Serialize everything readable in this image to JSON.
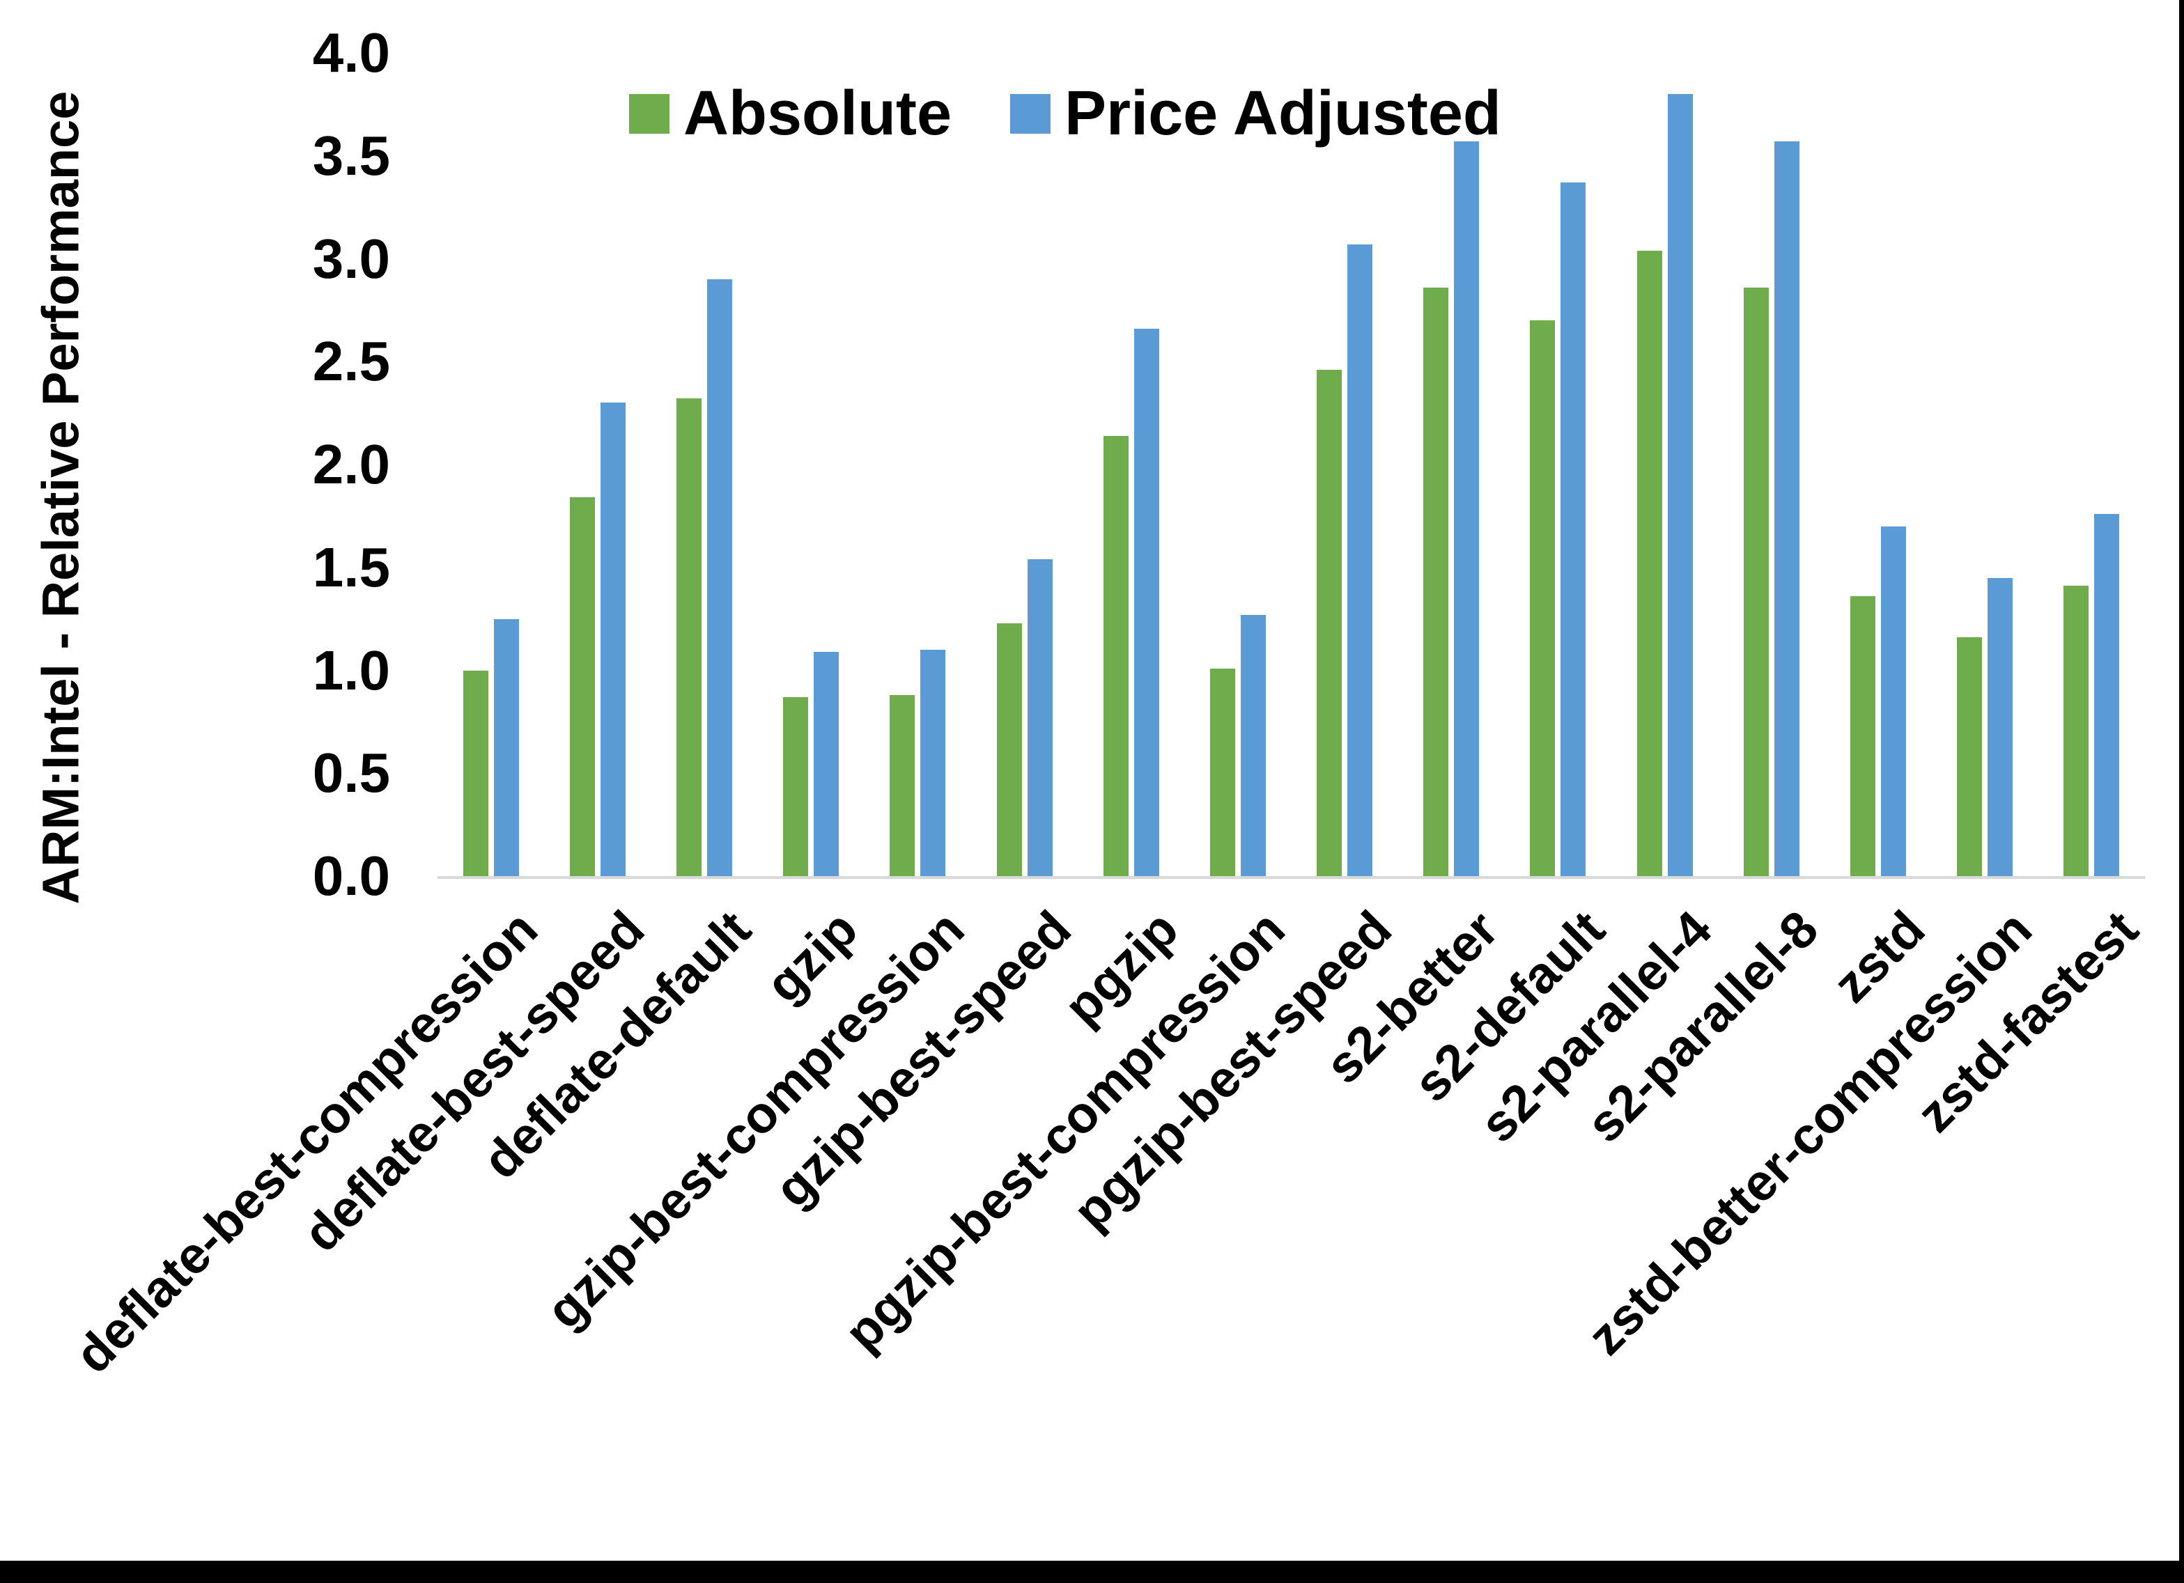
{
  "chart_data": {
    "type": "bar",
    "title": "",
    "xlabel": "",
    "ylabel": "ARM:Intel - Relative Performance",
    "ylim": [
      0.0,
      4.0
    ],
    "ytick_step": 0.5,
    "ytick_labels": [
      "0.0",
      "0.5",
      "1.0",
      "1.5",
      "2.0",
      "2.5",
      "3.0",
      "3.5",
      "4.0"
    ],
    "grid": "off",
    "legend_position": "top-center",
    "categories": [
      "deflate-best-compression",
      "deflate-best-speed",
      "deflate-default",
      "gzip",
      "gzip-best-compression",
      "gzip-best-speed",
      "pgzip",
      "pgzip-best-compression",
      "pgzip-best-speed",
      "s2-better",
      "s2-default",
      "s2-parallel-4",
      "s2-parallel-8",
      "zstd",
      "zstd-better-compression",
      "zstd-fastest"
    ],
    "series": [
      {
        "name": "Absolute",
        "color": "#6FAC4B",
        "values": [
          1.0,
          1.84,
          2.32,
          0.87,
          0.88,
          1.23,
          2.14,
          1.01,
          2.46,
          2.86,
          2.7,
          3.04,
          2.86,
          1.36,
          1.16,
          1.41
        ]
      },
      {
        "name": "Price Adjusted",
        "color": "#5B9BD5",
        "values": [
          1.25,
          2.3,
          2.9,
          1.09,
          1.1,
          1.54,
          2.66,
          1.27,
          3.07,
          3.57,
          3.37,
          3.8,
          3.57,
          1.7,
          1.45,
          1.76
        ]
      }
    ],
    "colors": {
      "axis_line": "#D9D9D9",
      "text": "#000000",
      "background": "#FFFFFF",
      "frame_border": "#000000"
    }
  }
}
